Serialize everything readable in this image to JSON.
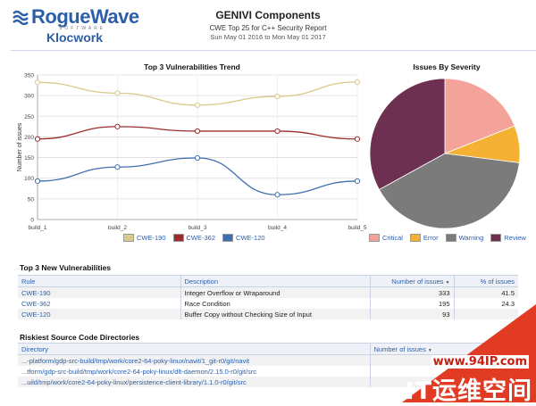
{
  "header": {
    "logo_primary": "RogueWave",
    "logo_software": "SOFTWARE",
    "logo_product": "Klocwork",
    "title": "GENIVI Components",
    "subtitle": "CWE Top 25 for C++ Security Report",
    "date_range": "Sun May 01 2016 to Mon May 01 2017"
  },
  "trend": {
    "title": "Top 3 Vulnerabilities Trend",
    "legend": [
      "CWE-190",
      "CWE-362",
      "CWE-120"
    ]
  },
  "severity": {
    "title": "Issues By Severity",
    "legend": [
      "Critical",
      "Error",
      "Warning",
      "Review"
    ]
  },
  "chart_data": [
    {
      "type": "line",
      "title": "Top 3 Vulnerabilities Trend",
      "xlabel": "",
      "ylabel": "Number of issues",
      "ylim": [
        0,
        350
      ],
      "yticks": [
        0,
        50,
        100,
        150,
        200,
        250,
        300,
        350
      ],
      "categories": [
        "build_1",
        "build_2",
        "build_3",
        "build_4",
        "build_5"
      ],
      "grid": true,
      "legend_position": "bottom",
      "series": [
        {
          "name": "CWE-190",
          "color": "#d9c98a",
          "values": [
            332,
            306,
            277,
            298,
            333
          ]
        },
        {
          "name": "CWE-362",
          "color": "#9c2d2d",
          "values": [
            195,
            225,
            214,
            214,
            195
          ]
        },
        {
          "name": "CWE-120",
          "color": "#3f6fb0",
          "values": [
            93,
            127,
            149,
            60,
            93
          ]
        }
      ]
    },
    {
      "type": "pie",
      "title": "Issues By Severity",
      "legend_position": "bottom",
      "slices": [
        {
          "name": "Critical",
          "color": "#f4a39a",
          "value": 19
        },
        {
          "name": "Error",
          "color": "#f5b134",
          "value": 8
        },
        {
          "name": "Warning",
          "color": "#7b7b7b",
          "value": 40
        },
        {
          "name": "Review",
          "color": "#6e3050",
          "value": 33
        }
      ]
    }
  ],
  "new_vulns": {
    "title": "Top 3 New Vulnerabilities",
    "columns": [
      "Rule",
      "Description",
      "Number of issues",
      "% of issues"
    ],
    "rows": [
      {
        "rule": "CWE-190",
        "description": "Integer Overflow or Wraparound",
        "count": "333",
        "percent": "41.5"
      },
      {
        "rule": "CWE-362",
        "description": "Race Condition",
        "count": "195",
        "percent": "24.3"
      },
      {
        "rule": "CWE-120",
        "description": "Buffer Copy without Checking Size of Input",
        "count": "93",
        "percent": ""
      }
    ]
  },
  "directories": {
    "title": "Riskiest Source Code Directories",
    "columns": [
      "Directory",
      "Number of issues"
    ],
    "rows": [
      {
        "path": "...-platform/gdp-src-build/tmp/work/core2-64-poky-linux/navit/1_git-r0/git/navit",
        "count": ""
      },
      {
        "path": "...tform/gdp-src-build/tmp/work/core2-64-poky-linux/dlt-daemon/2.15.0-r0/git/src",
        "count": ""
      },
      {
        "path": "...uild/tmp/work/core2-64-poky-linux/persistence-client-library/1.1.0-r0/git/src",
        "count": ""
      }
    ]
  },
  "watermark": {
    "url": "www.94IP.com",
    "brand": "IT运维空间"
  },
  "colors": {
    "accent": "#2d5fa8",
    "watermark_red": "#e13b24"
  }
}
